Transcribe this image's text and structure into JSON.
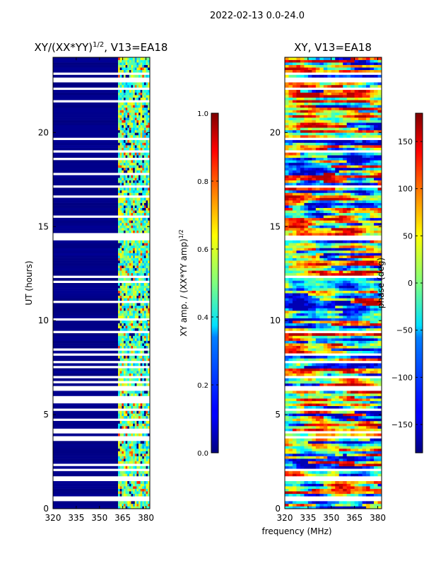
{
  "figure_title": "2022-02-13 0.0-24.0",
  "chart_data": [
    {
      "type": "heatmap",
      "title": "XY/(XX*YY)",
      "title_sup": "1/2",
      "title_suffix": ", V13=EA18",
      "xlabel": "",
      "ylabel": "UT (hours)",
      "xlim": [
        320,
        382.5
      ],
      "ylim": [
        0,
        24
      ],
      "xticks": [
        "320",
        "335",
        "350",
        "365",
        "380"
      ],
      "yticks": [
        "0",
        "5",
        "10",
        "15",
        "20"
      ],
      "colormap": "jet",
      "colorbar": {
        "label": "XY amp. / (XX*YY amp)",
        "label_sup": "1/2",
        "range": [
          0.0,
          1.0
        ],
        "ticks": [
          "0.0",
          "0.2",
          "0.4",
          "0.6",
          "0.8",
          "1.0"
        ]
      },
      "description_values": {
        "low_freq_band_mhz": [
          320,
          362
        ],
        "low_freq_band_typical": 0.0,
        "high_freq_band_mhz": [
          362,
          382.5
        ],
        "high_freq_band_typical": 0.45
      }
    },
    {
      "type": "heatmap",
      "title": "XY, V13=EA18",
      "xlabel": "frequency (MHz)",
      "ylabel": "",
      "xlim": [
        320,
        382.5
      ],
      "ylim": [
        0,
        24
      ],
      "xticks": [
        "320",
        "335",
        "350",
        "365",
        "380"
      ],
      "yticks": [
        "0",
        "5",
        "10",
        "15",
        "20"
      ],
      "colormap": "jet",
      "colorbar": {
        "label": "phase (deg)",
        "range": [
          -180,
          180
        ],
        "ticks": [
          "−150",
          "−100",
          "−50",
          "0",
          "50",
          "100",
          "150"
        ]
      }
    }
  ]
}
